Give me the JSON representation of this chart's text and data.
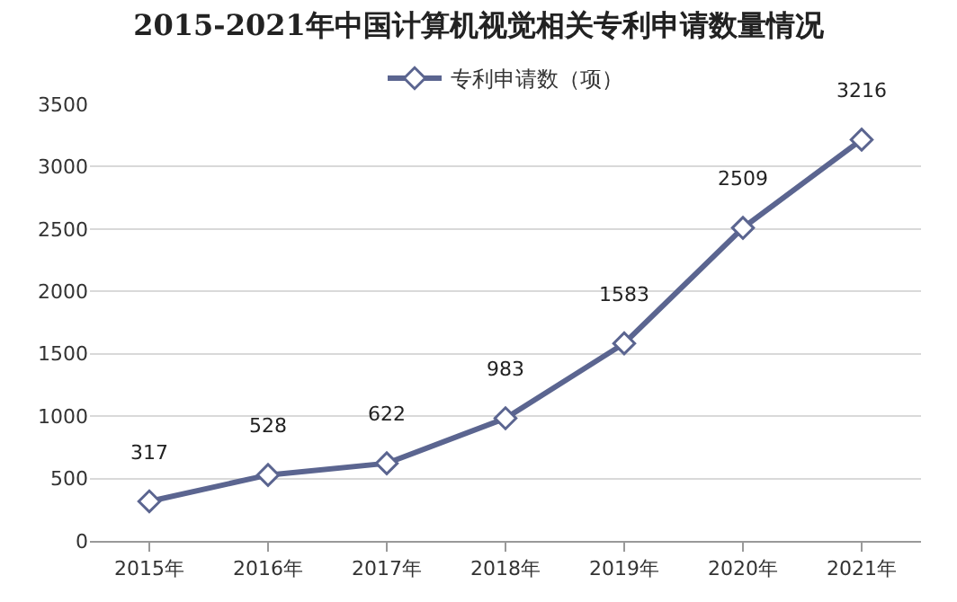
{
  "chart_data": {
    "type": "line",
    "title": "2015-2021年中国计算机视觉相关专利申请数量情况",
    "categories": [
      "2015年",
      "2016年",
      "2017年",
      "2018年",
      "2019年",
      "2020年",
      "2021年"
    ],
    "series": [
      {
        "name": "专利申请数（项）",
        "color": "#5b6590",
        "values": [
          317,
          528,
          622,
          983,
          1583,
          2509,
          3216
        ]
      }
    ],
    "ylim": [
      0,
      3500
    ],
    "yticks": [
      0,
      500,
      1000,
      1500,
      2000,
      2500,
      3000,
      3500
    ],
    "grid": "y",
    "legend": "top",
    "marker": "diamond",
    "line_style": "solid",
    "data_labels": true
  }
}
